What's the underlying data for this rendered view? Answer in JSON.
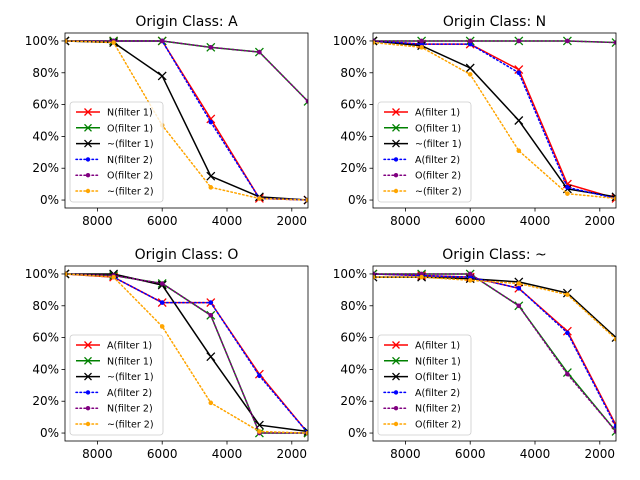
{
  "chart_data": [
    {
      "type": "line",
      "title": "Origin Class: A",
      "xlabel": "",
      "ylabel": "",
      "xlim": [
        9000,
        1500
      ],
      "ylim": [
        -5,
        105
      ],
      "x": [
        9000,
        7500,
        6000,
        4500,
        3000,
        1500
      ],
      "xticks": [
        8000,
        6000,
        4000,
        2000
      ],
      "xtick_labels": [
        "8000",
        "6000",
        "4000",
        "2000"
      ],
      "yticks": [
        0,
        20,
        40,
        60,
        80,
        100
      ],
      "ytick_labels": [
        "0%",
        "20%",
        "40%",
        "60%",
        "80%",
        "100%"
      ],
      "series": [
        {
          "name": "N(filter 1)",
          "color": "#ff0000",
          "dash": "solid",
          "marker": "x",
          "values": [
            100,
            100,
            100,
            51,
            1,
            0
          ]
        },
        {
          "name": "O(filter 1)",
          "color": "#008000",
          "dash": "solid",
          "marker": "x",
          "values": [
            100,
            100,
            100,
            96,
            93,
            62
          ]
        },
        {
          "name": "~(filter 1)",
          "color": "#000000",
          "dash": "solid",
          "marker": "x",
          "values": [
            100,
            99,
            78,
            15,
            2,
            0
          ]
        },
        {
          "name": "N(filter 2)",
          "color": "#0000ff",
          "dash": "dotted",
          "marker": "dot",
          "values": [
            100,
            100,
            100,
            49,
            1,
            0
          ]
        },
        {
          "name": "O(filter 2)",
          "color": "#800080",
          "dash": "dotted",
          "marker": "dot",
          "values": [
            100,
            100,
            100,
            96,
            93,
            62
          ]
        },
        {
          "name": "~(filter 2)",
          "color": "#ffa500",
          "dash": "dotted",
          "marker": "dot",
          "values": [
            100,
            99,
            47,
            8,
            1,
            0
          ]
        }
      ]
    },
    {
      "type": "line",
      "title": "Origin Class: N",
      "xlabel": "",
      "ylabel": "",
      "xlim": [
        9000,
        1500
      ],
      "ylim": [
        -5,
        105
      ],
      "x": [
        9000,
        7500,
        6000,
        4500,
        3000,
        1500
      ],
      "xticks": [
        8000,
        6000,
        4000,
        2000
      ],
      "xtick_labels": [
        "8000",
        "6000",
        "4000",
        "2000"
      ],
      "yticks": [
        0,
        20,
        40,
        60,
        80,
        100
      ],
      "ytick_labels": [
        "0%",
        "20%",
        "40%",
        "60%",
        "80%",
        "100%"
      ],
      "series": [
        {
          "name": "A(filter 1)",
          "color": "#ff0000",
          "dash": "solid",
          "marker": "x",
          "values": [
            100,
            98,
            98,
            82,
            10,
            1
          ]
        },
        {
          "name": "O(filter 1)",
          "color": "#008000",
          "dash": "solid",
          "marker": "x",
          "values": [
            100,
            100,
            100,
            100,
            100,
            99
          ]
        },
        {
          "name": "~(filter 1)",
          "color": "#000000",
          "dash": "solid",
          "marker": "x",
          "values": [
            100,
            97,
            83,
            50,
            7,
            2
          ]
        },
        {
          "name": "A(filter 2)",
          "color": "#0000ff",
          "dash": "dotted",
          "marker": "dot",
          "values": [
            100,
            98,
            98,
            80,
            8,
            1
          ]
        },
        {
          "name": "O(filter 2)",
          "color": "#800080",
          "dash": "dotted",
          "marker": "dot",
          "values": [
            100,
            100,
            100,
            100,
            100,
            99
          ]
        },
        {
          "name": "~(filter 2)",
          "color": "#ffa500",
          "dash": "dotted",
          "marker": "dot",
          "values": [
            99,
            96,
            79,
            31,
            4,
            1
          ]
        }
      ]
    },
    {
      "type": "line",
      "title": "Origin Class: O",
      "xlabel": "",
      "ylabel": "",
      "xlim": [
        9000,
        1500
      ],
      "ylim": [
        -5,
        105
      ],
      "x": [
        9000,
        7500,
        6000,
        4500,
        3000,
        1500
      ],
      "xticks": [
        8000,
        6000,
        4000,
        2000
      ],
      "xtick_labels": [
        "8000",
        "6000",
        "4000",
        "2000"
      ],
      "yticks": [
        0,
        20,
        40,
        60,
        80,
        100
      ],
      "ytick_labels": [
        "0%",
        "20%",
        "40%",
        "60%",
        "80%",
        "100%"
      ],
      "series": [
        {
          "name": "A(filter 1)",
          "color": "#ff0000",
          "dash": "solid",
          "marker": "x",
          "values": [
            100,
            98,
            82,
            82,
            37,
            0
          ]
        },
        {
          "name": "N(filter 1)",
          "color": "#008000",
          "dash": "solid",
          "marker": "x",
          "values": [
            100,
            99,
            94,
            74,
            0,
            0
          ]
        },
        {
          "name": "~(filter 1)",
          "color": "#000000",
          "dash": "solid",
          "marker": "x",
          "values": [
            100,
            100,
            93,
            48,
            5,
            1
          ]
        },
        {
          "name": "A(filter 2)",
          "color": "#0000ff",
          "dash": "dotted",
          "marker": "dot",
          "values": [
            100,
            98,
            82,
            82,
            36,
            0
          ]
        },
        {
          "name": "N(filter 2)",
          "color": "#800080",
          "dash": "dotted",
          "marker": "dot",
          "values": [
            100,
            99,
            94,
            74,
            0,
            0
          ]
        },
        {
          "name": "~(filter 2)",
          "color": "#ffa500",
          "dash": "dotted",
          "marker": "dot",
          "values": [
            100,
            98,
            67,
            19,
            1,
            0
          ]
        }
      ]
    },
    {
      "type": "line",
      "title": "Origin Class: ~",
      "xlabel": "",
      "ylabel": "",
      "xlim": [
        9000,
        1500
      ],
      "ylim": [
        -5,
        105
      ],
      "x": [
        9000,
        7500,
        6000,
        4500,
        3000,
        1500
      ],
      "xticks": [
        8000,
        6000,
        4000,
        2000
      ],
      "xtick_labels": [
        "8000",
        "6000",
        "4000",
        "2000"
      ],
      "yticks": [
        0,
        20,
        40,
        60,
        80,
        100
      ],
      "ytick_labels": [
        "0%",
        "20%",
        "40%",
        "60%",
        "80%",
        "100%"
      ],
      "series": [
        {
          "name": "A(filter 1)",
          "color": "#ff0000",
          "dash": "solid",
          "marker": "x",
          "values": [
            100,
            99,
            98,
            91,
            64,
            5
          ]
        },
        {
          "name": "N(filter 1)",
          "color": "#008000",
          "dash": "solid",
          "marker": "x",
          "values": [
            100,
            100,
            100,
            80,
            38,
            1
          ]
        },
        {
          "name": "O(filter 1)",
          "color": "#000000",
          "dash": "solid",
          "marker": "x",
          "values": [
            98,
            98,
            97,
            95,
            88,
            60
          ]
        },
        {
          "name": "A(filter 2)",
          "color": "#0000ff",
          "dash": "dotted",
          "marker": "dot",
          "values": [
            100,
            99,
            98,
            91,
            63,
            4
          ]
        },
        {
          "name": "N(filter 2)",
          "color": "#800080",
          "dash": "dotted",
          "marker": "dot",
          "values": [
            100,
            100,
            100,
            80,
            37,
            1
          ]
        },
        {
          "name": "O(filter 2)",
          "color": "#ffa500",
          "dash": "dotted",
          "marker": "dot",
          "values": [
            98,
            98,
            96,
            94,
            87,
            59
          ]
        }
      ]
    }
  ]
}
